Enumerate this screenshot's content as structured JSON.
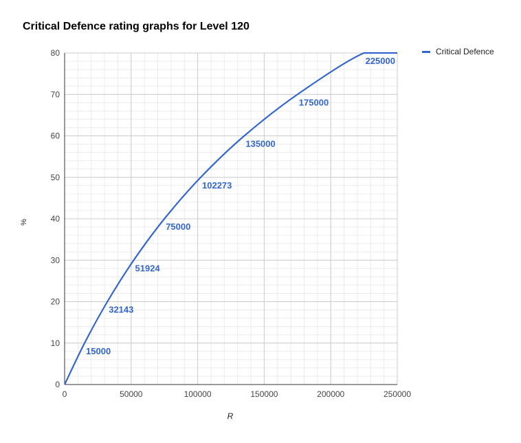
{
  "chart_data": {
    "type": "line",
    "title": "Critical Defence rating graphs for Level 120",
    "xlabel": "R",
    "ylabel": "%",
    "xlim": [
      0,
      250000
    ],
    "ylim": [
      0,
      80
    ],
    "x_ticks": [
      0,
      50000,
      100000,
      150000,
      200000,
      250000
    ],
    "y_ticks": [
      0,
      10,
      20,
      30,
      40,
      50,
      60,
      70,
      80
    ],
    "grid": true,
    "minor_grid": true,
    "legend": "top-right",
    "series": [
      {
        "name": "Critical Defence",
        "color": "#3366cc",
        "x": [
          0,
          15000,
          32143,
          51924,
          75000,
          102273,
          135000,
          175000,
          225000,
          250000
        ],
        "y": [
          0,
          10,
          20,
          30,
          40,
          50,
          60,
          70,
          80,
          80
        ],
        "point_labels": [
          "",
          "15000",
          "32143",
          "51924",
          "75000",
          "102273",
          "135000",
          "175000",
          "225000",
          ""
        ]
      }
    ]
  }
}
